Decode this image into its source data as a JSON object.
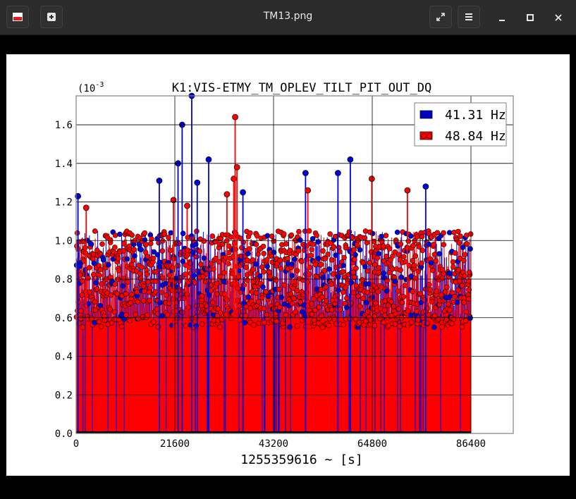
{
  "window": {
    "title": "TM13.png",
    "icons": [
      "app-image-icon",
      "new-tab-icon",
      "fullscreen-icon",
      "menu-icon",
      "minimize-icon",
      "maximize-icon",
      "close-icon"
    ]
  },
  "chart_data": {
    "type": "scatter",
    "title": "K1:VIS-ETMY_TM_OPLEV_TILT_PIT_OUT_DQ",
    "xlabel": "1255359616 ~ [s]",
    "ylabel": "",
    "y_multiplier": "(10",
    "y_exponent": "-3",
    "xlim": [
      0,
      86400
    ],
    "ylim": [
      0.0,
      1.75
    ],
    "x_ticks": [
      "0",
      "21600",
      "43200",
      "64800",
      "86400"
    ],
    "y_ticks": [
      "0.0",
      "0.2",
      "0.4",
      "0.6",
      "0.8",
      "1.0",
      "1.2",
      "1.4",
      "1.6"
    ],
    "grid": true,
    "legend_position": "top-right",
    "colors": {
      "series1": "#0000dd",
      "series2": "#ff0000",
      "frame": "#808080"
    },
    "series": [
      {
        "name": "41.31 Hz",
        "peaks": [
          {
            "x": 400,
            "y": 1.23
          },
          {
            "x": 18200,
            "y": 1.31
          },
          {
            "x": 22300,
            "y": 1.4
          },
          {
            "x": 23200,
            "y": 1.6
          },
          {
            "x": 25300,
            "y": 1.75
          },
          {
            "x": 26500,
            "y": 1.3
          },
          {
            "x": 29000,
            "y": 1.42
          },
          {
            "x": 36500,
            "y": 1.25
          },
          {
            "x": 50200,
            "y": 1.35
          },
          {
            "x": 57300,
            "y": 1.35
          },
          {
            "x": 60000,
            "y": 1.42
          },
          {
            "x": 76500,
            "y": 1.28
          }
        ]
      },
      {
        "name": "48.84 Hz",
        "peaks": [
          {
            "x": 2200,
            "y": 1.17
          },
          {
            "x": 21300,
            "y": 1.21
          },
          {
            "x": 24300,
            "y": 1.18
          },
          {
            "x": 33000,
            "y": 1.24
          },
          {
            "x": 34500,
            "y": 1.32
          },
          {
            "x": 34800,
            "y": 1.64
          },
          {
            "x": 35200,
            "y": 1.38
          },
          {
            "x": 50700,
            "y": 1.26
          },
          {
            "x": 64700,
            "y": 1.32
          },
          {
            "x": 72500,
            "y": 1.26
          }
        ]
      }
    ]
  }
}
